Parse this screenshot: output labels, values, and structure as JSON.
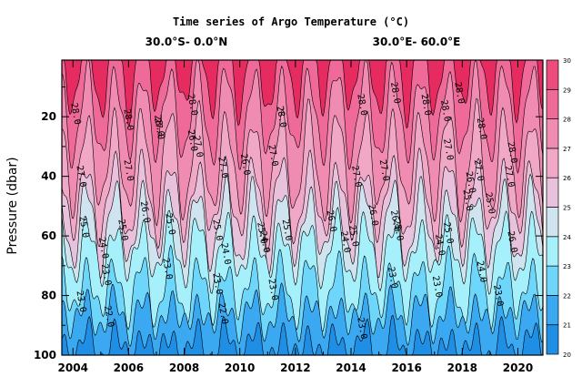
{
  "header": {
    "title": "Time series of Argo Temperature (°C)",
    "lat_range": "30.0°S- 0.0°N",
    "lon_range": "30.0°E- 60.0°E"
  },
  "chart_data": {
    "type": "contour",
    "title": "Time series of Argo Temperature (°C)",
    "ylabel": "Pressure (dbar)",
    "xlabel": "",
    "xlim": [
      2003.6,
      2020.9
    ],
    "ylim": [
      100,
      1
    ],
    "x_ticks": [
      2004,
      2006,
      2008,
      2010,
      2012,
      2014,
      2016,
      2018,
      2020
    ],
    "y_ticks": [
      20,
      40,
      60,
      80,
      100
    ],
    "colorbar": {
      "levels": [
        20,
        21,
        22,
        23,
        24,
        25,
        26,
        27,
        28,
        29,
        30
      ],
      "colors": [
        "#1f8fe6",
        "#3aa9f2",
        "#6fd6fb",
        "#a6f0fb",
        "#cfe4ee",
        "#e8c2dc",
        "#f1a7c6",
        "#f08bb1",
        "#ef6a98",
        "#ec4b7c",
        "#e52b5f"
      ]
    },
    "series": [
      {
        "name": "28.0",
        "values": [
          {
            "x": 2004.1,
            "y": 19
          },
          {
            "x": 2006.0,
            "y": 21
          },
          {
            "x": 2007.1,
            "y": 23
          },
          {
            "x": 2008.3,
            "y": 16
          },
          {
            "x": 2011.5,
            "y": 20
          },
          {
            "x": 2014.4,
            "y": 16
          },
          {
            "x": 2015.6,
            "y": 12
          },
          {
            "x": 2016.7,
            "y": 16
          },
          {
            "x": 2017.4,
            "y": 18
          },
          {
            "x": 2017.9,
            "y": 12
          },
          {
            "x": 2018.7,
            "y": 24
          },
          {
            "x": 2019.8,
            "y": 32
          }
        ]
      },
      {
        "name": "27.0",
        "values": [
          {
            "x": 2004.3,
            "y": 40
          },
          {
            "x": 2006.0,
            "y": 38
          },
          {
            "x": 2007.1,
            "y": 24
          },
          {
            "x": 2008.5,
            "y": 30
          },
          {
            "x": 2009.4,
            "y": 37
          },
          {
            "x": 2011.2,
            "y": 33
          },
          {
            "x": 2014.2,
            "y": 40
          },
          {
            "x": 2015.2,
            "y": 38
          },
          {
            "x": 2017.5,
            "y": 31
          },
          {
            "x": 2018.6,
            "y": 38
          },
          {
            "x": 2019.7,
            "y": 40
          }
        ]
      },
      {
        "name": "26.0",
        "values": [
          {
            "x": 2006.6,
            "y": 52
          },
          {
            "x": 2008.3,
            "y": 28
          },
          {
            "x": 2010.2,
            "y": 36
          },
          {
            "x": 2013.3,
            "y": 55
          },
          {
            "x": 2014.8,
            "y": 53
          },
          {
            "x": 2015.6,
            "y": 55
          },
          {
            "x": 2018.3,
            "y": 42
          },
          {
            "x": 2019.8,
            "y": 62
          }
        ]
      },
      {
        "name": "25.0",
        "values": [
          {
            "x": 2004.4,
            "y": 57
          },
          {
            "x": 2005.8,
            "y": 58
          },
          {
            "x": 2007.5,
            "y": 56
          },
          {
            "x": 2009.2,
            "y": 58
          },
          {
            "x": 2010.8,
            "y": 59
          },
          {
            "x": 2011.7,
            "y": 58
          },
          {
            "x": 2014.1,
            "y": 60
          },
          {
            "x": 2015.7,
            "y": 58
          },
          {
            "x": 2017.5,
            "y": 59
          },
          {
            "x": 2018.2,
            "y": 48
          },
          {
            "x": 2019.0,
            "y": 49
          }
        ]
      },
      {
        "name": "24.0",
        "values": [
          {
            "x": 2005.1,
            "y": 64
          },
          {
            "x": 2009.5,
            "y": 66
          },
          {
            "x": 2010.9,
            "y": 62
          },
          {
            "x": 2013.8,
            "y": 62
          },
          {
            "x": 2017.2,
            "y": 63
          },
          {
            "x": 2018.7,
            "y": 72
          }
        ]
      },
      {
        "name": "23.0",
        "values": [
          {
            "x": 2004.3,
            "y": 82
          },
          {
            "x": 2005.2,
            "y": 73
          },
          {
            "x": 2007.4,
            "y": 71
          },
          {
            "x": 2009.2,
            "y": 76
          },
          {
            "x": 2011.2,
            "y": 78
          },
          {
            "x": 2014.4,
            "y": 91
          },
          {
            "x": 2015.5,
            "y": 74
          },
          {
            "x": 2017.1,
            "y": 77
          },
          {
            "x": 2019.3,
            "y": 80
          }
        ]
      },
      {
        "name": "22.0",
        "values": [
          {
            "x": 2005.3,
            "y": 87
          },
          {
            "x": 2009.4,
            "y": 86
          }
        ]
      }
    ]
  }
}
